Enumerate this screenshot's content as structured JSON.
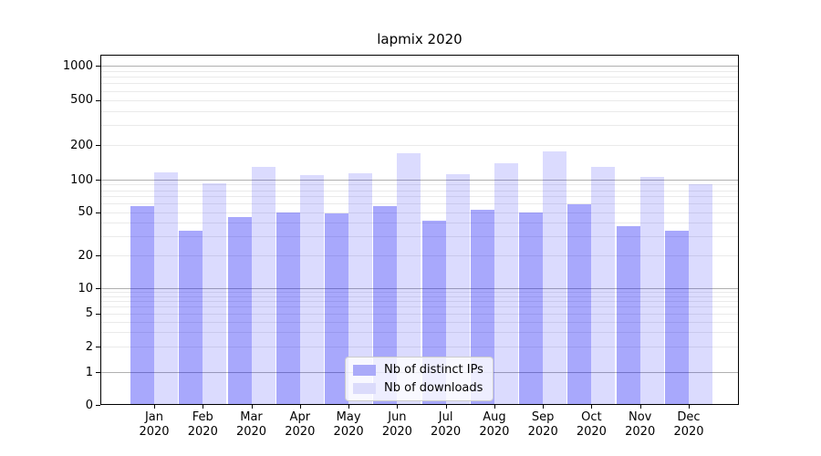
{
  "chart_data": {
    "type": "bar",
    "title": "lapmix 2020",
    "categories": [
      "Jan 2020",
      "Feb 2020",
      "Mar 2020",
      "Apr 2020",
      "May 2020",
      "Jun 2020",
      "Jul 2020",
      "Aug 2020",
      "Sep 2020",
      "Oct 2020",
      "Nov 2020",
      "Dec 2020"
    ],
    "series": [
      {
        "name": "Nb of distinct IPs",
        "fill": "rgba(0,0,245,0.34)",
        "legend_color": "#aaaaf9",
        "values": [
          57,
          34,
          45,
          50,
          49,
          57,
          42,
          53,
          50,
          59,
          37,
          34
        ]
      },
      {
        "name": "Nb of downloads",
        "fill": "rgba(0,0,245,0.14)",
        "legend_color": "#dbdbfb",
        "values": [
          117,
          93,
          130,
          110,
          114,
          172,
          112,
          140,
          178,
          130,
          105,
          90
        ]
      }
    ],
    "xlabel": "",
    "ylabel": "",
    "yscale": "symlog",
    "yticks": [
      0,
      1,
      2,
      5,
      10,
      20,
      50,
      100,
      200,
      500,
      1000
    ],
    "ylim": [
      0,
      1200
    ],
    "grid": true,
    "legend_position": "lower center inside",
    "colors": {
      "major_grid": "#b0b0b0",
      "minor_grid": "#eaeaea",
      "spine": "#000000",
      "text": "#000000",
      "background": "#ffffff"
    }
  }
}
